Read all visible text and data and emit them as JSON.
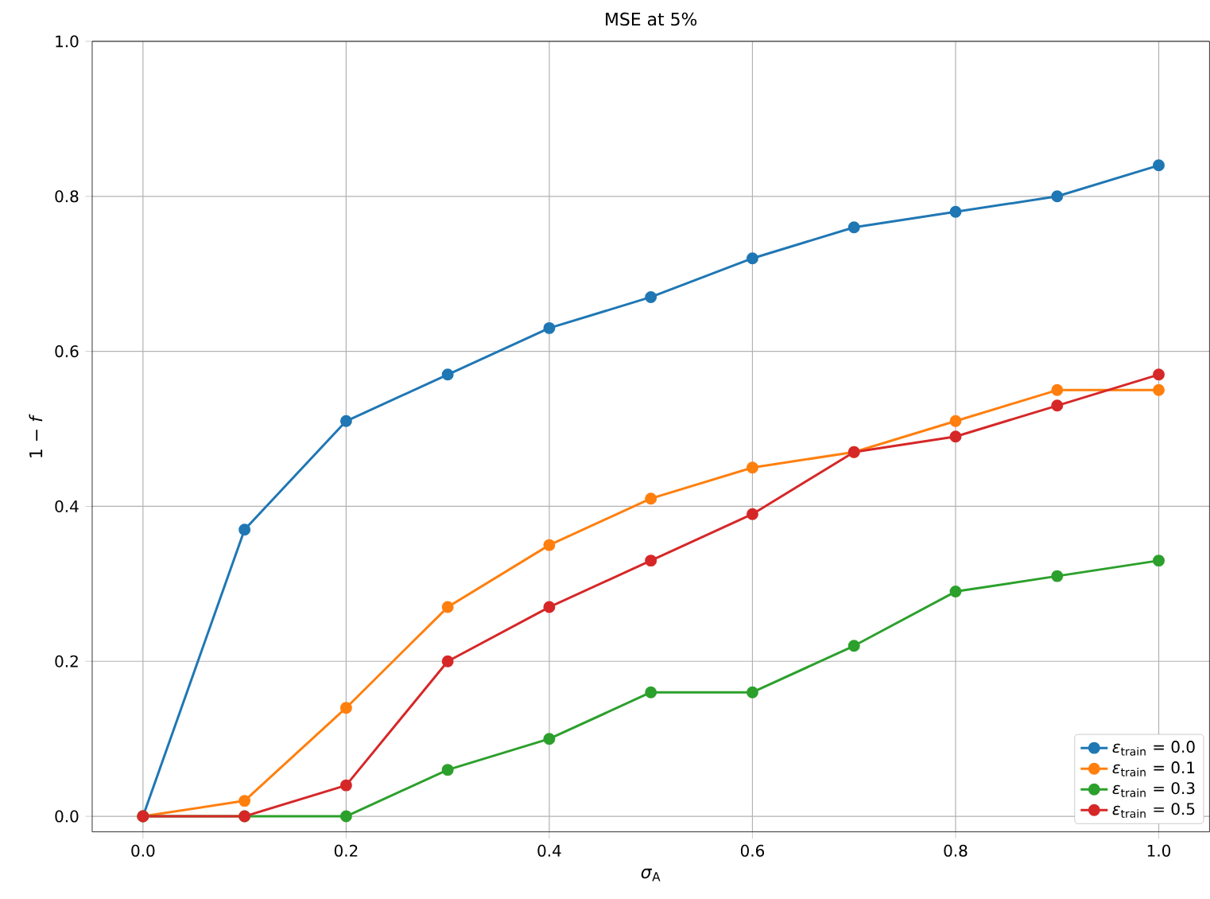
{
  "chart_data": {
    "type": "line",
    "title": "MSE at 5%",
    "xlabel": "*σ*$_{A}$",
    "ylabel": "1 − *f*",
    "x": [
      0.0,
      0.1,
      0.2,
      0.3,
      0.4,
      0.5,
      0.6,
      0.7,
      0.8,
      0.9,
      1.0
    ],
    "series": [
      {
        "name": "*ε*$_{train}$ = 0.0",
        "color": "#1f77b4",
        "values": [
          0.0,
          0.37,
          0.51,
          0.57,
          0.63,
          0.67,
          0.72,
          0.76,
          0.78,
          0.8,
          0.84
        ]
      },
      {
        "name": "*ε*$_{train}$ = 0.1",
        "color": "#ff7f0e",
        "values": [
          0.0,
          0.02,
          0.14,
          0.27,
          0.35,
          0.41,
          0.45,
          0.47,
          0.51,
          0.55,
          0.55
        ]
      },
      {
        "name": "*ε*$_{train}$ = 0.3",
        "color": "#2ca02c",
        "values": [
          0.0,
          0.0,
          0.0,
          0.06,
          0.1,
          0.16,
          0.16,
          0.22,
          0.29,
          0.31,
          0.33
        ]
      },
      {
        "name": "*ε*$_{train}$ = 0.5",
        "color": "#d62728",
        "values": [
          0.0,
          0.0,
          0.04,
          0.2,
          0.27,
          0.33,
          0.39,
          0.47,
          0.49,
          0.53,
          0.57
        ]
      }
    ],
    "xlim": [
      -0.05,
      1.05
    ],
    "ylim": [
      -0.02,
      1.0
    ],
    "xticks": [
      {
        "value": 0,
        "label": "0.0"
      },
      0.2,
      0.4,
      0.6,
      0.8,
      {
        "value": 1,
        "label": "1.0"
      }
    ],
    "yticks": [
      {
        "value": 0,
        "label": "0.0"
      },
      0.2,
      0.4,
      0.6,
      0.8,
      {
        "value": 1,
        "label": "1.0"
      }
    ],
    "grid": true,
    "legend": "bottom right",
    "marker": "circle",
    "line_style": "solid"
  }
}
